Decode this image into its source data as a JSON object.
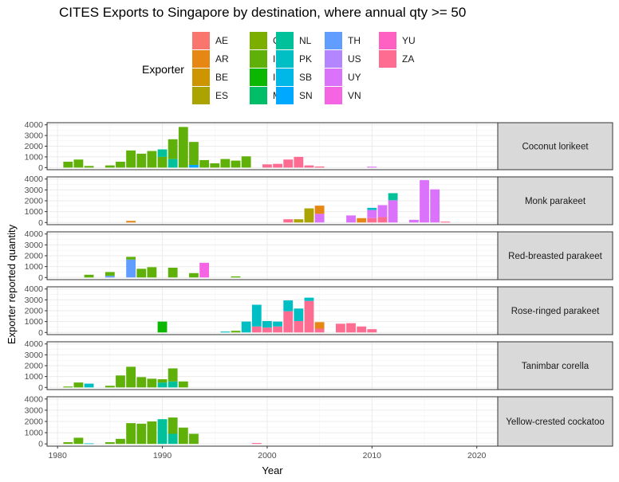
{
  "chart_data": {
    "type": "bar",
    "stacked": true,
    "title": "CITES Exports to Singapore by destination, where annual qty >= 50",
    "xlabel": "Year",
    "ylabel": "Exporter reported quantity",
    "xlim": [
      1979,
      2022
    ],
    "ylim": [
      0,
      4000
    ],
    "x_ticks": [
      1980,
      1990,
      2000,
      2010,
      2020
    ],
    "y_ticks": [
      0,
      1000,
      2000,
      3000,
      4000
    ],
    "grid": true,
    "legend": {
      "title": "Exporter",
      "placement": "top",
      "entries": [
        {
          "code": "AE",
          "color": "#F8766D"
        },
        {
          "code": "AR",
          "color": "#E68613"
        },
        {
          "code": "BE",
          "color": "#CD9600"
        },
        {
          "code": "ES",
          "color": "#ABA300"
        },
        {
          "code": "GN",
          "color": "#7CAE00"
        },
        {
          "code": "ID",
          "color": "#5FB10A"
        },
        {
          "code": "IN",
          "color": "#0CB702"
        },
        {
          "code": "MY",
          "color": "#00BE67"
        },
        {
          "code": "NL",
          "color": "#00C19A"
        },
        {
          "code": "PK",
          "color": "#00BFC4"
        },
        {
          "code": "SB",
          "color": "#00B8E7"
        },
        {
          "code": "SN",
          "color": "#00A9FF"
        },
        {
          "code": "TH",
          "color": "#619CFF"
        },
        {
          "code": "US",
          "color": "#B385FF"
        },
        {
          "code": "UY",
          "color": "#DB72FB"
        },
        {
          "code": "VN",
          "color": "#F564E3"
        },
        {
          "code": "YU",
          "color": "#FF61C3"
        },
        {
          "code": "ZA",
          "color": "#FF6C91"
        }
      ]
    },
    "facets": [
      {
        "label": "Coconut lorikeet",
        "bars": [
          {
            "year": 1981,
            "segs": [
              [
                "ID",
                550
              ]
            ]
          },
          {
            "year": 1982,
            "segs": [
              [
                "ID",
                750
              ]
            ]
          },
          {
            "year": 1983,
            "segs": [
              [
                "ID",
                150
              ]
            ]
          },
          {
            "year": 1985,
            "segs": [
              [
                "ID",
                200
              ]
            ]
          },
          {
            "year": 1986,
            "segs": [
              [
                "ID",
                550
              ]
            ]
          },
          {
            "year": 1987,
            "segs": [
              [
                "ID",
                1600
              ]
            ]
          },
          {
            "year": 1988,
            "segs": [
              [
                "ID",
                1300
              ]
            ]
          },
          {
            "year": 1989,
            "segs": [
              [
                "ID",
                1550
              ]
            ]
          },
          {
            "year": 1990,
            "segs": [
              [
                "ID",
                1000
              ],
              [
                "NL",
                700
              ]
            ]
          },
          {
            "year": 1991,
            "segs": [
              [
                "NL",
                800
              ],
              [
                "ID",
                1850
              ]
            ]
          },
          {
            "year": 1992,
            "segs": [
              [
                "ID",
                3800
              ]
            ]
          },
          {
            "year": 1993,
            "segs": [
              [
                "SN",
                250
              ],
              [
                "ID",
                2150
              ]
            ]
          },
          {
            "year": 1994,
            "segs": [
              [
                "ID",
                700
              ]
            ]
          },
          {
            "year": 1995,
            "segs": [
              [
                "ID",
                400
              ]
            ]
          },
          {
            "year": 1996,
            "segs": [
              [
                "ID",
                800
              ]
            ]
          },
          {
            "year": 1997,
            "segs": [
              [
                "ID",
                650
              ]
            ]
          },
          {
            "year": 1998,
            "segs": [
              [
                "ID",
                1050
              ]
            ]
          },
          {
            "year": 2000,
            "segs": [
              [
                "ZA",
                300
              ]
            ]
          },
          {
            "year": 2001,
            "segs": [
              [
                "ZA",
                350
              ]
            ]
          },
          {
            "year": 2002,
            "segs": [
              [
                "ZA",
                750
              ]
            ]
          },
          {
            "year": 2003,
            "segs": [
              [
                "ZA",
                1000
              ]
            ]
          },
          {
            "year": 2004,
            "segs": [
              [
                "ZA",
                200
              ]
            ]
          },
          {
            "year": 2005,
            "segs": [
              [
                "ZA",
                100
              ]
            ]
          },
          {
            "year": 2010,
            "segs": [
              [
                "UY",
                80
              ]
            ]
          }
        ]
      },
      {
        "label": "Monk parakeet",
        "bars": [
          {
            "year": 1987,
            "segs": [
              [
                "AR",
                150
              ]
            ]
          },
          {
            "year": 2002,
            "segs": [
              [
                "ZA",
                300
              ]
            ]
          },
          {
            "year": 2003,
            "segs": [
              [
                "ES",
                300
              ]
            ]
          },
          {
            "year": 2004,
            "segs": [
              [
                "ES",
                1300
              ]
            ]
          },
          {
            "year": 2005,
            "segs": [
              [
                "UY",
                800
              ],
              [
                "AR",
                750
              ]
            ]
          },
          {
            "year": 2008,
            "segs": [
              [
                "UY",
                650
              ]
            ]
          },
          {
            "year": 2009,
            "segs": [
              [
                "AR",
                400
              ]
            ]
          },
          {
            "year": 2010,
            "segs": [
              [
                "ZA",
                400
              ],
              [
                "UY",
                750
              ],
              [
                "PK",
                200
              ]
            ]
          },
          {
            "year": 2011,
            "segs": [
              [
                "ZA",
                500
              ],
              [
                "UY",
                1100
              ]
            ]
          },
          {
            "year": 2012,
            "segs": [
              [
                "UY",
                2050
              ],
              [
                "NL",
                650
              ]
            ]
          },
          {
            "year": 2014,
            "segs": [
              [
                "UY",
                250
              ]
            ]
          },
          {
            "year": 2015,
            "segs": [
              [
                "UY",
                3900
              ]
            ]
          },
          {
            "year": 2016,
            "segs": [
              [
                "UY",
                3050
              ]
            ]
          },
          {
            "year": 2017,
            "segs": [
              [
                "ZA",
                80
              ]
            ]
          }
        ]
      },
      {
        "label": "Red-breasted parakeet",
        "bars": [
          {
            "year": 1983,
            "segs": [
              [
                "ID",
                250
              ]
            ]
          },
          {
            "year": 1985,
            "segs": [
              [
                "TH",
                150
              ],
              [
                "ID",
                350
              ]
            ]
          },
          {
            "year": 1987,
            "segs": [
              [
                "TH",
                1650
              ],
              [
                "ID",
                250
              ]
            ]
          },
          {
            "year": 1988,
            "segs": [
              [
                "ID",
                800
              ]
            ]
          },
          {
            "year": 1989,
            "segs": [
              [
                "ID",
                950
              ]
            ]
          },
          {
            "year": 1991,
            "segs": [
              [
                "ID",
                900
              ]
            ]
          },
          {
            "year": 1993,
            "segs": [
              [
                "ID",
                400
              ]
            ]
          },
          {
            "year": 1994,
            "segs": [
              [
                "VN",
                1350
              ]
            ]
          },
          {
            "year": 1997,
            "segs": [
              [
                "ID",
                100
              ]
            ]
          }
        ]
      },
      {
        "label": "Rose-ringed parakeet",
        "bars": [
          {
            "year": 1990,
            "segs": [
              [
                "IN",
                1000
              ]
            ]
          },
          {
            "year": 1996,
            "segs": [
              [
                "PK",
                80
              ]
            ]
          },
          {
            "year": 1997,
            "segs": [
              [
                "ID",
                150
              ]
            ]
          },
          {
            "year": 1998,
            "segs": [
              [
                "PK",
                1000
              ]
            ]
          },
          {
            "year": 1999,
            "segs": [
              [
                "ZA",
                550
              ],
              [
                "PK",
                2000
              ]
            ]
          },
          {
            "year": 2000,
            "segs": [
              [
                "ZA",
                450
              ],
              [
                "PK",
                600
              ]
            ]
          },
          {
            "year": 2001,
            "segs": [
              [
                "ZA",
                550
              ],
              [
                "PK",
                450
              ]
            ]
          },
          {
            "year": 2002,
            "segs": [
              [
                "ZA",
                1950
              ],
              [
                "PK",
                1000
              ]
            ]
          },
          {
            "year": 2003,
            "segs": [
              [
                "ZA",
                1050
              ],
              [
                "PK",
                1150
              ]
            ]
          },
          {
            "year": 2004,
            "segs": [
              [
                "ZA",
                2900
              ],
              [
                "PK",
                300
              ]
            ]
          },
          {
            "year": 2005,
            "segs": [
              [
                "ZA",
                350
              ],
              [
                "AR",
                600
              ]
            ]
          },
          {
            "year": 2007,
            "segs": [
              [
                "ZA",
                800
              ]
            ]
          },
          {
            "year": 2008,
            "segs": [
              [
                "ZA",
                850
              ]
            ]
          },
          {
            "year": 2009,
            "segs": [
              [
                "ZA",
                550
              ]
            ]
          },
          {
            "year": 2010,
            "segs": [
              [
                "ZA",
                300
              ]
            ]
          }
        ]
      },
      {
        "label": "Tanimbar corella",
        "bars": [
          {
            "year": 1981,
            "segs": [
              [
                "ID",
                80
              ]
            ]
          },
          {
            "year": 1982,
            "segs": [
              [
                "ID",
                450
              ]
            ]
          },
          {
            "year": 1983,
            "segs": [
              [
                "PK",
                350
              ]
            ]
          },
          {
            "year": 1985,
            "segs": [
              [
                "ID",
                150
              ]
            ]
          },
          {
            "year": 1986,
            "segs": [
              [
                "ID",
                1100
              ]
            ]
          },
          {
            "year": 1987,
            "segs": [
              [
                "ID",
                1900
              ]
            ]
          },
          {
            "year": 1988,
            "segs": [
              [
                "ID",
                950
              ]
            ]
          },
          {
            "year": 1989,
            "segs": [
              [
                "ID",
                800
              ]
            ]
          },
          {
            "year": 1990,
            "segs": [
              [
                "NL",
                450
              ],
              [
                "ID",
                300
              ]
            ]
          },
          {
            "year": 1991,
            "segs": [
              [
                "NL",
                550
              ],
              [
                "ID",
                1200
              ]
            ]
          },
          {
            "year": 1992,
            "segs": [
              [
                "ID",
                550
              ]
            ]
          }
        ]
      },
      {
        "label": "Yellow-crested cockatoo",
        "bars": [
          {
            "year": 1981,
            "segs": [
              [
                "ID",
                150
              ]
            ]
          },
          {
            "year": 1982,
            "segs": [
              [
                "ID",
                550
              ]
            ]
          },
          {
            "year": 1983,
            "segs": [
              [
                "PK",
                50
              ]
            ]
          },
          {
            "year": 1985,
            "segs": [
              [
                "ID",
                150
              ]
            ]
          },
          {
            "year": 1986,
            "segs": [
              [
                "ID",
                450
              ]
            ]
          },
          {
            "year": 1987,
            "segs": [
              [
                "ID",
                1850
              ]
            ]
          },
          {
            "year": 1988,
            "segs": [
              [
                "ID",
                1800
              ]
            ]
          },
          {
            "year": 1989,
            "segs": [
              [
                "ID",
                2000
              ]
            ]
          },
          {
            "year": 1990,
            "segs": [
              [
                "NL",
                2200
              ]
            ]
          },
          {
            "year": 1991,
            "segs": [
              [
                "NL",
                900
              ],
              [
                "ID",
                1450
              ]
            ]
          },
          {
            "year": 1992,
            "segs": [
              [
                "ID",
                1450
              ]
            ]
          },
          {
            "year": 1993,
            "segs": [
              [
                "ID",
                900
              ]
            ]
          },
          {
            "year": 1999,
            "segs": [
              [
                "ZA",
                80
              ]
            ]
          }
        ]
      }
    ]
  }
}
